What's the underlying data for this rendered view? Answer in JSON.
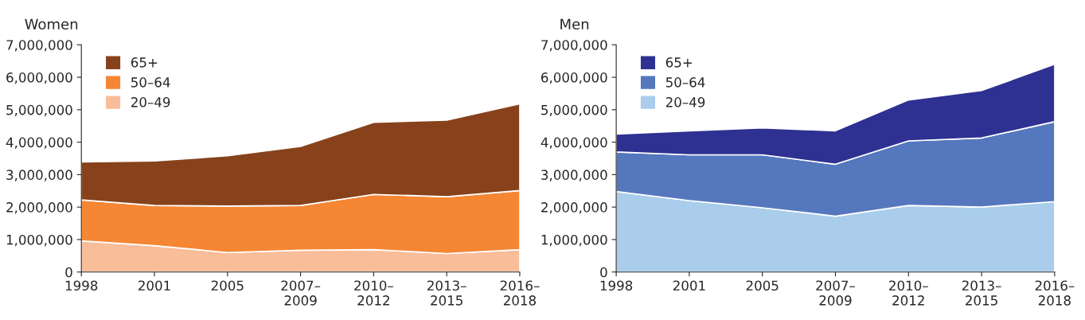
{
  "chart_data": [
    {
      "type": "area",
      "title": "Women",
      "stacked": true,
      "legend": "top left",
      "categories": [
        "1998",
        "2001",
        "2005",
        "2007–\n2009",
        "2010–\n2012",
        "2013–\n2015",
        "2016–\n2018"
      ],
      "ylim": [
        0,
        7000000
      ],
      "yticks": [
        0,
        {
          "value": 1000000,
          "label": "1,000,000"
        },
        {
          "value": 2000000,
          "label": "2,000,000"
        },
        {
          "value": 3000000,
          "label": "3,000,000"
        },
        {
          "value": 4000000,
          "label": "4,000,000"
        },
        {
          "value": 5000000,
          "label": "5,000,000"
        },
        {
          "value": 6000000,
          "label": "6,000,000"
        },
        {
          "value": 7000000,
          "label": "7,000,000"
        }
      ],
      "series": [
        {
          "name": "20–49",
          "color": "#f9bd9a",
          "values": [
            960000,
            810000,
            600000,
            670000,
            690000,
            570000,
            690000
          ]
        },
        {
          "name": "50–64",
          "color": "#f58634",
          "values": [
            1260000,
            1240000,
            1430000,
            1380000,
            1700000,
            1750000,
            1820000
          ]
        },
        {
          "name": "65+",
          "color": "#87421c",
          "values": [
            1170000,
            1370000,
            1550000,
            1820000,
            2220000,
            2360000,
            2670000
          ]
        }
      ]
    },
    {
      "type": "area",
      "title": "Men",
      "stacked": true,
      "legend": "top left",
      "categories": [
        "1998",
        "2001",
        "2005",
        "2007–\n2009",
        "2010–\n2012",
        "2013–\n2015",
        "2016–\n2018"
      ],
      "ylim": [
        0,
        7000000
      ],
      "yticks": [
        0,
        {
          "value": 1000000,
          "label": "1,000,000"
        },
        {
          "value": 2000000,
          "label": "2,000,000"
        },
        {
          "value": 3000000,
          "label": "3,000,000"
        },
        {
          "value": 4000000,
          "label": "4,000,000"
        },
        {
          "value": 5000000,
          "label": "5,000,000"
        },
        {
          "value": 6000000,
          "label": "6,000,000"
        },
        {
          "value": 7000000,
          "label": "7,000,000"
        }
      ],
      "series": [
        {
          "name": "20–49",
          "color": "#a9cdeb",
          "values": [
            2480000,
            2200000,
            1980000,
            1720000,
            2050000,
            2000000,
            2170000
          ]
        },
        {
          "name": "50–64",
          "color": "#5577bd",
          "values": [
            1220000,
            1410000,
            1630000,
            1600000,
            1990000,
            2130000,
            2460000
          ]
        },
        {
          "name": "65+",
          "color": "#2e3192",
          "values": [
            550000,
            740000,
            830000,
            1030000,
            1260000,
            1460000,
            1770000
          ]
        }
      ]
    }
  ]
}
